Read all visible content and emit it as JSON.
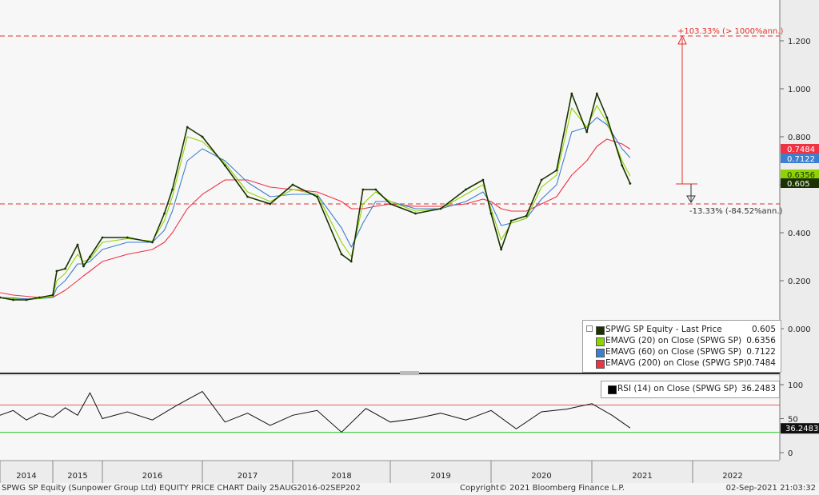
{
  "footer": {
    "left": "SPWG SP Equity (Sunpower Group Ltd) EQUITY PRICE CHART  Daily 25AUG2016-02SEP202",
    "center": "Copyright© 2021 Bloomberg Finance L.P.",
    "right": "02-Sep-2021 21:03:32"
  },
  "legend": {
    "items": [
      {
        "name": "SPWG SP Equity - Last Price",
        "value": "0.605",
        "color": "#1a3300"
      },
      {
        "name": "EMAVG (20)   on Close (SPWG SP)",
        "value": "0.6356",
        "color": "#8fd400"
      },
      {
        "name": "EMAVG (60)   on Close (SPWG SP)",
        "value": "0.7122",
        "color": "#3d7fcf"
      },
      {
        "name": "EMAVG (200)  on Close (SPWG SP)",
        "value": "0.7484",
        "color": "#ee3344"
      }
    ]
  },
  "rsi_legend": {
    "name": "RSI (14)   on Close (SPWG SP)",
    "value": "36.2483"
  },
  "annotations": {
    "upper_text": "+103.33% (> 1000%ann.)",
    "lower_text": "-13.33% (-84.52%ann.)"
  },
  "chart_data": [
    {
      "type": "line",
      "title": "",
      "y_ticks": [
        "1.200",
        "1.000",
        "0.800",
        "0.600",
        "0.400",
        "0.200",
        "0.000"
      ],
      "ylim": [
        -0.05,
        1.37
      ],
      "x_ticks": [
        "2014",
        "2015",
        "2016",
        "2017",
        "2018",
        "2019",
        "2020",
        "2021",
        "2022"
      ],
      "x": [
        2014.0,
        2014.25,
        2014.5,
        2014.75,
        2015.0,
        2015.08,
        2015.25,
        2015.5,
        2015.62,
        2015.75,
        2016.0,
        2016.25,
        2016.5,
        2016.62,
        2016.7,
        2016.85,
        2017.0,
        2017.25,
        2017.5,
        2017.75,
        2018.0,
        2018.25,
        2018.5,
        2018.6,
        2018.72,
        2018.85,
        2019.0,
        2019.25,
        2019.5,
        2019.75,
        2019.92,
        2020.0,
        2020.1,
        2020.2,
        2020.35,
        2020.5,
        2020.65,
        2020.8,
        2020.95,
        2021.05,
        2021.15,
        2021.3,
        2021.38
      ],
      "series": [
        {
          "name": "SPWG SP Equity - Last Price",
          "color": "#1a3300",
          "values": [
            0.13,
            0.12,
            0.12,
            0.13,
            0.14,
            0.24,
            0.25,
            0.35,
            0.26,
            0.3,
            0.38,
            0.38,
            0.36,
            0.48,
            0.58,
            0.84,
            0.8,
            0.68,
            0.55,
            0.52,
            0.6,
            0.55,
            0.31,
            0.28,
            0.58,
            0.58,
            0.52,
            0.48,
            0.5,
            0.58,
            0.62,
            0.48,
            0.33,
            0.45,
            0.47,
            0.62,
            0.66,
            0.98,
            0.82,
            0.98,
            0.88,
            0.68,
            0.605
          ]
        },
        {
          "name": "EMAVG (20) on Close (SPWG SP)",
          "color": "#8fd400",
          "values": [
            0.13,
            0.125,
            0.12,
            0.125,
            0.135,
            0.2,
            0.23,
            0.31,
            0.28,
            0.29,
            0.36,
            0.375,
            0.365,
            0.45,
            0.55,
            0.8,
            0.78,
            0.69,
            0.57,
            0.53,
            0.58,
            0.56,
            0.36,
            0.3,
            0.52,
            0.57,
            0.53,
            0.49,
            0.5,
            0.56,
            0.6,
            0.5,
            0.37,
            0.44,
            0.46,
            0.59,
            0.64,
            0.92,
            0.84,
            0.93,
            0.86,
            0.7,
            0.6356
          ]
        },
        {
          "name": "EMAVG (60) on Close (SPWG SP)",
          "color": "#3d7fcf",
          "values": [
            0.13,
            0.128,
            0.124,
            0.125,
            0.13,
            0.17,
            0.2,
            0.27,
            0.27,
            0.28,
            0.33,
            0.36,
            0.36,
            0.41,
            0.49,
            0.7,
            0.75,
            0.7,
            0.61,
            0.55,
            0.56,
            0.56,
            0.42,
            0.34,
            0.44,
            0.53,
            0.53,
            0.5,
            0.5,
            0.53,
            0.57,
            0.52,
            0.43,
            0.44,
            0.46,
            0.54,
            0.6,
            0.82,
            0.84,
            0.88,
            0.85,
            0.75,
            0.7122
          ]
        },
        {
          "name": "EMAVG (200) on Close (SPWG SP)",
          "color": "#ee3344",
          "values": [
            0.15,
            0.14,
            0.135,
            0.13,
            0.13,
            0.14,
            0.16,
            0.2,
            0.22,
            0.24,
            0.28,
            0.31,
            0.33,
            0.36,
            0.4,
            0.5,
            0.56,
            0.62,
            0.62,
            0.59,
            0.58,
            0.57,
            0.53,
            0.5,
            0.5,
            0.51,
            0.52,
            0.51,
            0.51,
            0.52,
            0.54,
            0.53,
            0.5,
            0.49,
            0.49,
            0.52,
            0.55,
            0.64,
            0.7,
            0.76,
            0.79,
            0.77,
            0.7484
          ]
        }
      ],
      "reference_lines": [
        1.22,
        0.52
      ],
      "value_tags": [
        {
          "label": "0.7484",
          "value": 0.7484,
          "color": "#ee3344"
        },
        {
          "label": "0.7122",
          "value": 0.7122,
          "color": "#3d7fcf"
        },
        {
          "label": "0.6356",
          "value": 0.6356,
          "color": "#8fd400"
        },
        {
          "label": "0.605",
          "value": 0.605,
          "color": "#1a3300"
        }
      ]
    },
    {
      "type": "line",
      "title": "",
      "y_ticks": [
        "100",
        "50",
        "0"
      ],
      "ylim": [
        -5,
        105
      ],
      "reference_lines": [
        70,
        30
      ],
      "x": [
        2014.0,
        2014.25,
        2014.5,
        2014.75,
        2015.0,
        2015.25,
        2015.5,
        2015.75,
        2016.0,
        2016.25,
        2016.5,
        2016.75,
        2017.0,
        2017.25,
        2017.5,
        2017.75,
        2018.0,
        2018.25,
        2018.5,
        2018.75,
        2019.0,
        2019.25,
        2019.5,
        2019.75,
        2020.0,
        2020.25,
        2020.5,
        2020.75,
        2021.0,
        2021.2,
        2021.38
      ],
      "series": [
        {
          "name": "RSI (14) on Close (SPWG SP)",
          "color": "#111111",
          "values": [
            55,
            62,
            48,
            58,
            52,
            66,
            55,
            88,
            50,
            60,
            48,
            70,
            90,
            45,
            58,
            40,
            55,
            62,
            30,
            65,
            45,
            50,
            58,
            48,
            62,
            35,
            60,
            64,
            72,
            55,
            36.2483
          ]
        }
      ],
      "value_tags": [
        {
          "label": "36.2483",
          "value": 36.2483
        }
      ]
    }
  ]
}
